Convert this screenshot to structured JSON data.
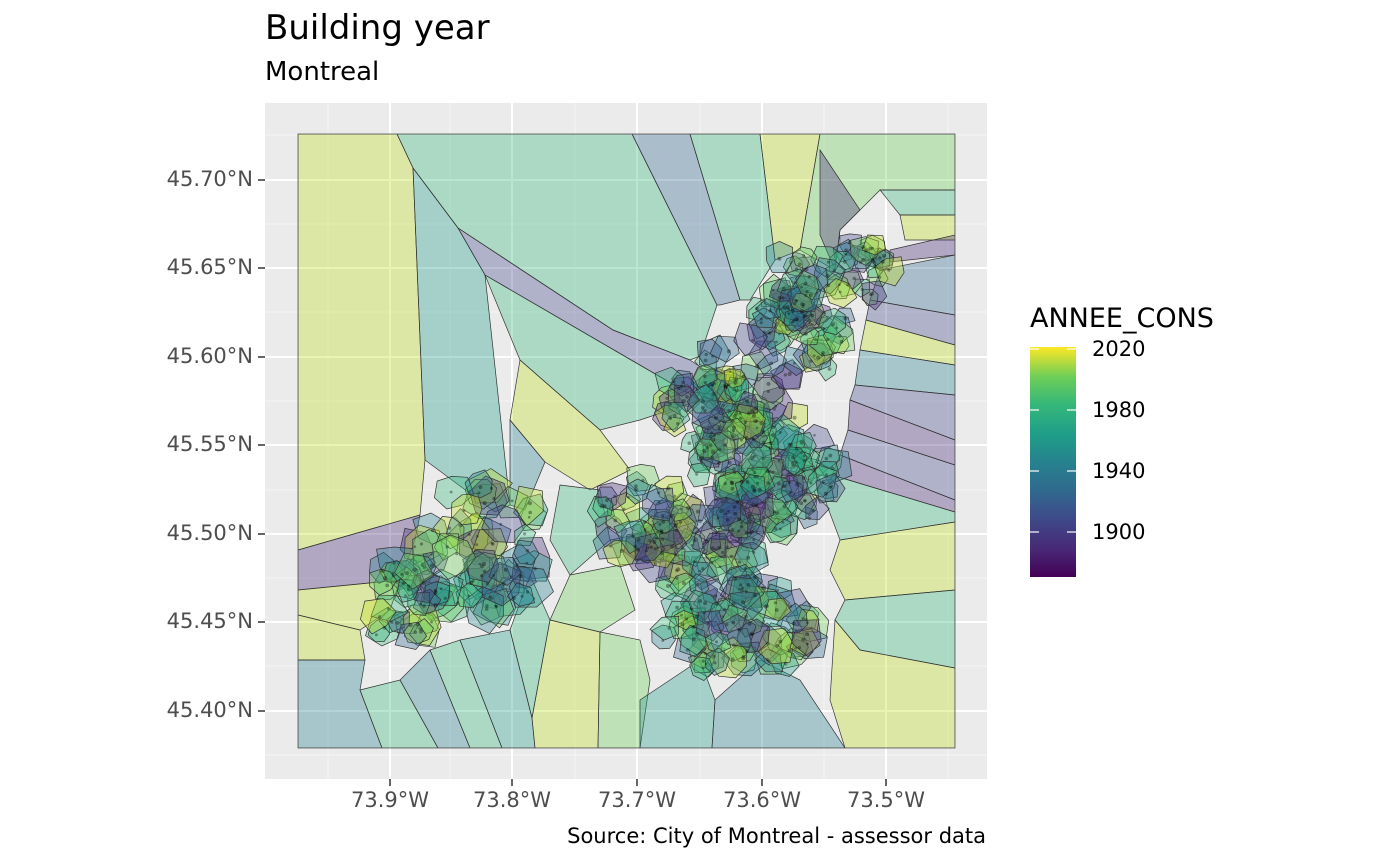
{
  "chart_data": {
    "type": "map",
    "title": "Building year",
    "subtitle": "Montreal",
    "caption": "Source: City of Montreal - assessor data",
    "x_ticks": [
      "73.9°W",
      "73.8°W",
      "73.7°W",
      "73.6°W",
      "73.5°W"
    ],
    "y_ticks": [
      "45.70°N",
      "45.65°N",
      "45.60°N",
      "45.55°N",
      "45.50°N",
      "45.45°N",
      "45.40°N"
    ],
    "xlim": [
      -73.99,
      -73.44
    ],
    "ylim": [
      45.36,
      45.74
    ],
    "grid": true,
    "legend": {
      "title": "ANNEE_CONS",
      "position": "right",
      "palette": "viridis",
      "breaks": [
        "2020",
        "1980",
        "1940",
        "1900"
      ],
      "range": [
        1860,
        2020
      ]
    }
  }
}
